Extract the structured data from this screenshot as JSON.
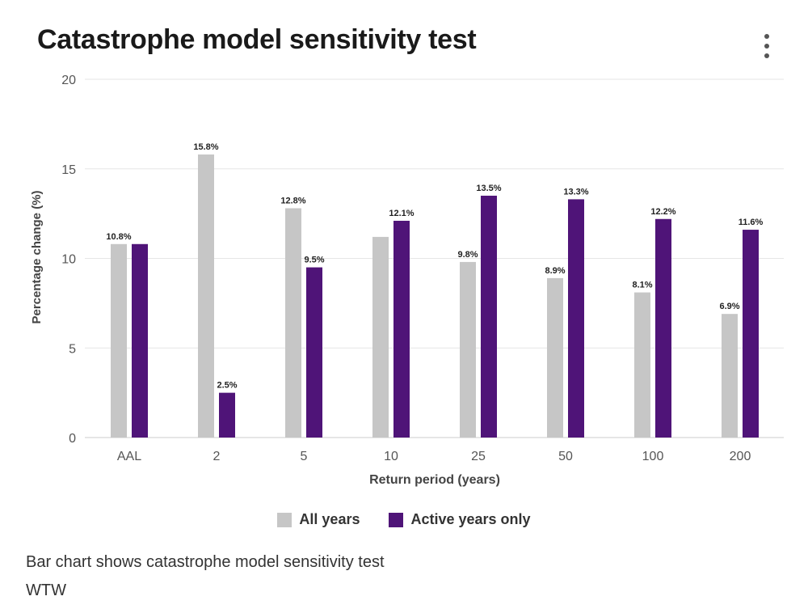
{
  "header": {
    "title": "Catastrophe model sensitivity test",
    "menu_icon": "more-vertical-icon"
  },
  "colors": {
    "all_years": "#c6c6c6",
    "active_years": "#4f1478",
    "grid": "#e6e6e6",
    "axis": "#cccccc"
  },
  "chart_data": {
    "type": "bar",
    "title": "Catastrophe model sensitivity test",
    "xlabel": "Return period (years)",
    "ylabel": "Percentage change (%)",
    "ylim": [
      0,
      20
    ],
    "yticks": [
      0,
      5,
      10,
      15,
      20
    ],
    "grid": true,
    "legend_position": "bottom-center",
    "categories": [
      "AAL",
      "2",
      "5",
      "10",
      "25",
      "50",
      "100",
      "200"
    ],
    "series": [
      {
        "name": "All years",
        "values": [
          10.8,
          15.8,
          12.8,
          11.2,
          9.8,
          8.9,
          8.1,
          6.9
        ],
        "labels": [
          "10.8%",
          "15.8%",
          "12.8%",
          "",
          "9.8%",
          "8.9%",
          "8.1%",
          "6.9%"
        ]
      },
      {
        "name": "Active years only",
        "values": [
          10.8,
          2.5,
          9.5,
          12.1,
          13.5,
          13.3,
          12.2,
          11.6
        ],
        "labels": [
          "",
          "2.5%",
          "9.5%",
          "12.1%",
          "13.5%",
          "13.3%",
          "12.2%",
          "11.6%"
        ]
      }
    ]
  },
  "footer": {
    "caption": "Bar chart shows catastrophe model sensitivity test",
    "source": "WTW"
  }
}
